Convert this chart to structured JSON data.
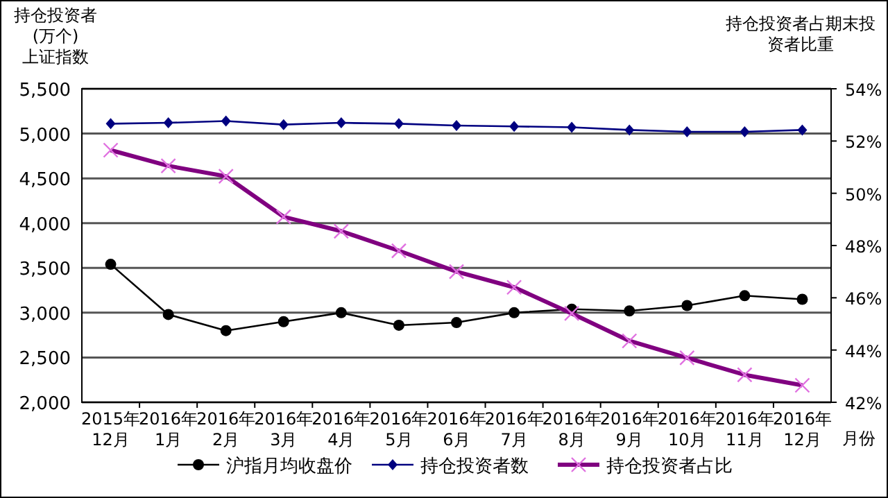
{
  "chart_data": {
    "type": "line",
    "ylabel": "持仓投资者\n(万个)\n上证指数",
    "y2label": "持仓投资者占期末投资者比重",
    "xlabel": "月份",
    "categories": [
      "2015年12月",
      "2016年1月",
      "2016年2月",
      "2016年3月",
      "2016年4月",
      "2016年5月",
      "2016年6月",
      "2016年7月",
      "2016年8月",
      "2016年9月",
      "2016年10月",
      "2016年11月",
      "2016年12月"
    ],
    "series": [
      {
        "name": "沪指月均收盘价",
        "color": "#000000",
        "marker": "circle",
        "values": [
          3540,
          2980,
          2800,
          2900,
          3000,
          2860,
          2890,
          3000,
          3040,
          3020,
          3080,
          3190,
          3150
        ]
      },
      {
        "name": "持仓投资者数",
        "color": "#000080",
        "marker": "diamond",
        "values": [
          5110,
          5120,
          5140,
          5100,
          5120,
          5110,
          5090,
          5080,
          5070,
          5040,
          5020,
          5020,
          5040
        ]
      },
      {
        "name": "持仓投资者占比",
        "color": "#800080",
        "marker": "cross",
        "axis": "y2",
        "values": [
          51.65,
          51.05,
          50.65,
          49.1,
          48.55,
          47.8,
          47.0,
          46.4,
          45.4,
          44.35,
          43.7,
          43.05,
          42.65
        ]
      }
    ],
    "ylim": [
      2000,
      5500
    ],
    "yticks": [
      {
        "value": 2000,
        "label": "2,000"
      },
      {
        "value": 2500,
        "label": "2,500"
      },
      {
        "value": 3000,
        "label": "3,000"
      },
      {
        "value": 3500,
        "label": "3,500"
      },
      {
        "value": 4000,
        "label": "4,000"
      },
      {
        "value": 4500,
        "label": "4,500"
      },
      {
        "value": 5000,
        "label": "5,000"
      },
      {
        "value": 5500,
        "label": "5,500"
      }
    ],
    "y2lim": [
      42,
      54
    ],
    "y2ticks": [
      {
        "value": 42,
        "label": "42%"
      },
      {
        "value": 44,
        "label": "44%"
      },
      {
        "value": 46,
        "label": "46%"
      },
      {
        "value": 48,
        "label": "48%"
      },
      {
        "value": 50,
        "label": "50%"
      },
      {
        "value": 52,
        "label": "52%"
      },
      {
        "value": 54,
        "label": "54%"
      }
    ],
    "grid": "y",
    "legend": "bottom"
  }
}
